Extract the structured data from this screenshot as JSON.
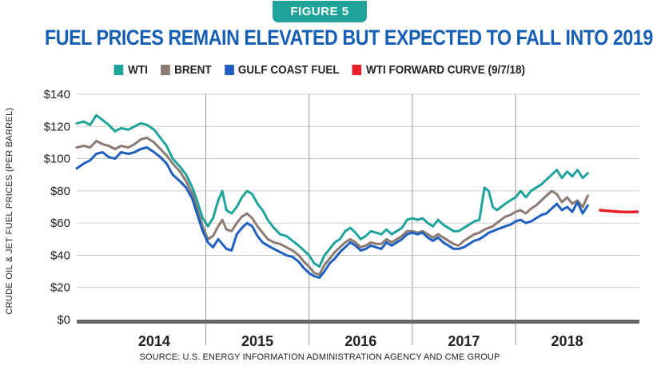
{
  "figure_label": "FIGURE 5",
  "colors": {
    "badge": "#1fa39a",
    "title": "#1560b4",
    "wti": "#1fa39a",
    "brent": "#8b7b72",
    "gulf": "#1f5fbf",
    "forward": "#e8202a",
    "axis": "#666666"
  },
  "chart_data": {
    "type": "line",
    "title": "FUEL PRICES REMAIN ELEVATED BUT EXPECTED TO FALL INTO 2019",
    "ylabel": "CRUDE OIL & JET FUEL PRICES (PER BARREL)",
    "xlabel": "",
    "source": "SOURCE: U.S. ENERGY INFORMATION ADMINISTRATION AGENCY AND CME GROUP",
    "ylim": [
      0,
      140
    ],
    "xlim": [
      2013.75,
      2019.2
    ],
    "y_ticks": [
      "$0",
      "$20",
      "$40",
      "$60",
      "$80",
      "$100",
      "$120",
      "$140"
    ],
    "x_tick_labels": [
      {
        "label": "2014",
        "x": 2014.5
      },
      {
        "label": "2015",
        "x": 2015.5
      },
      {
        "label": "2016",
        "x": 2016.5
      },
      {
        "label": "2017",
        "x": 2017.5
      },
      {
        "label": "2018",
        "x": 2018.5
      }
    ],
    "year_dividers": [
      2015,
      2016,
      2017,
      2018
    ],
    "grid": "horizontal",
    "legend_position": "top",
    "series": [
      {
        "name": "WTI",
        "color_key": "wti",
        "points": [
          [
            2013.75,
            122
          ],
          [
            2013.82,
            123
          ],
          [
            2013.88,
            121
          ],
          [
            2013.94,
            127
          ],
          [
            2014.0,
            124
          ],
          [
            2014.06,
            121
          ],
          [
            2014.12,
            117
          ],
          [
            2014.18,
            119
          ],
          [
            2014.25,
            118
          ],
          [
            2014.31,
            120
          ],
          [
            2014.37,
            122
          ],
          [
            2014.43,
            121
          ],
          [
            2014.5,
            118
          ],
          [
            2014.56,
            113
          ],
          [
            2014.62,
            108
          ],
          [
            2014.68,
            100
          ],
          [
            2014.75,
            95
          ],
          [
            2014.81,
            90
          ],
          [
            2014.87,
            82
          ],
          [
            2014.92,
            73
          ],
          [
            2014.97,
            63
          ],
          [
            2015.02,
            58
          ],
          [
            2015.07,
            63
          ],
          [
            2015.12,
            74
          ],
          [
            2015.16,
            80
          ],
          [
            2015.2,
            68
          ],
          [
            2015.25,
            66
          ],
          [
            2015.3,
            70
          ],
          [
            2015.35,
            76
          ],
          [
            2015.4,
            80
          ],
          [
            2015.45,
            78
          ],
          [
            2015.5,
            72
          ],
          [
            2015.55,
            68
          ],
          [
            2015.6,
            62
          ],
          [
            2015.66,
            57
          ],
          [
            2015.72,
            53
          ],
          [
            2015.78,
            52
          ],
          [
            2015.84,
            49
          ],
          [
            2015.9,
            46
          ],
          [
            2015.95,
            43
          ],
          [
            2016.0,
            40
          ],
          [
            2016.05,
            35
          ],
          [
            2016.1,
            33
          ],
          [
            2016.15,
            40
          ],
          [
            2016.2,
            44
          ],
          [
            2016.25,
            48
          ],
          [
            2016.3,
            50
          ],
          [
            2016.35,
            55
          ],
          [
            2016.4,
            57
          ],
          [
            2016.45,
            54
          ],
          [
            2016.5,
            50
          ],
          [
            2016.55,
            52
          ],
          [
            2016.6,
            55
          ],
          [
            2016.65,
            54
          ],
          [
            2016.7,
            53
          ],
          [
            2016.75,
            56
          ],
          [
            2016.8,
            53
          ],
          [
            2016.85,
            55
          ],
          [
            2016.9,
            57
          ],
          [
            2016.95,
            62
          ],
          [
            2017.0,
            63
          ],
          [
            2017.05,
            62
          ],
          [
            2017.1,
            63
          ],
          [
            2017.15,
            60
          ],
          [
            2017.2,
            58
          ],
          [
            2017.25,
            62
          ],
          [
            2017.3,
            59
          ],
          [
            2017.35,
            57
          ],
          [
            2017.4,
            55
          ],
          [
            2017.45,
            55
          ],
          [
            2017.5,
            57
          ],
          [
            2017.55,
            59
          ],
          [
            2017.6,
            61
          ],
          [
            2017.65,
            62
          ],
          [
            2017.7,
            82
          ],
          [
            2017.74,
            80
          ],
          [
            2017.78,
            70
          ],
          [
            2017.82,
            68
          ],
          [
            2017.86,
            70
          ],
          [
            2017.9,
            72
          ],
          [
            2017.95,
            74
          ],
          [
            2018.0,
            76
          ],
          [
            2018.05,
            80
          ],
          [
            2018.1,
            76
          ],
          [
            2018.15,
            80
          ],
          [
            2018.2,
            82
          ],
          [
            2018.25,
            84
          ],
          [
            2018.3,
            87
          ],
          [
            2018.35,
            90
          ],
          [
            2018.4,
            93
          ],
          [
            2018.45,
            88
          ],
          [
            2018.5,
            92
          ],
          [
            2018.55,
            89
          ],
          [
            2018.6,
            93
          ],
          [
            2018.65,
            88
          ],
          [
            2018.7,
            91
          ]
        ]
      },
      {
        "name": "BRENT",
        "color_key": "brent",
        "points": [
          [
            2013.75,
            107
          ],
          [
            2013.82,
            108
          ],
          [
            2013.88,
            107
          ],
          [
            2013.94,
            111
          ],
          [
            2014.0,
            109
          ],
          [
            2014.06,
            108
          ],
          [
            2014.12,
            106
          ],
          [
            2014.18,
            108
          ],
          [
            2014.25,
            107
          ],
          [
            2014.31,
            109
          ],
          [
            2014.37,
            112
          ],
          [
            2014.43,
            113
          ],
          [
            2014.5,
            110
          ],
          [
            2014.56,
            106
          ],
          [
            2014.62,
            102
          ],
          [
            2014.68,
            97
          ],
          [
            2014.75,
            92
          ],
          [
            2014.81,
            86
          ],
          [
            2014.87,
            78
          ],
          [
            2014.92,
            68
          ],
          [
            2014.97,
            58
          ],
          [
            2015.02,
            50
          ],
          [
            2015.07,
            52
          ],
          [
            2015.12,
            58
          ],
          [
            2015.16,
            62
          ],
          [
            2015.2,
            56
          ],
          [
            2015.25,
            55
          ],
          [
            2015.3,
            60
          ],
          [
            2015.35,
            64
          ],
          [
            2015.4,
            66
          ],
          [
            2015.45,
            63
          ],
          [
            2015.5,
            58
          ],
          [
            2015.55,
            54
          ],
          [
            2015.6,
            50
          ],
          [
            2015.66,
            48
          ],
          [
            2015.72,
            47
          ],
          [
            2015.78,
            45
          ],
          [
            2015.84,
            43
          ],
          [
            2015.9,
            40
          ],
          [
            2015.95,
            36
          ],
          [
            2016.0,
            33
          ],
          [
            2016.05,
            29
          ],
          [
            2016.1,
            28
          ],
          [
            2016.15,
            34
          ],
          [
            2016.2,
            38
          ],
          [
            2016.25,
            42
          ],
          [
            2016.3,
            45
          ],
          [
            2016.35,
            48
          ],
          [
            2016.4,
            50
          ],
          [
            2016.45,
            48
          ],
          [
            2016.5,
            45
          ],
          [
            2016.55,
            46
          ],
          [
            2016.6,
            48
          ],
          [
            2016.65,
            47
          ],
          [
            2016.7,
            47
          ],
          [
            2016.75,
            50
          ],
          [
            2016.8,
            48
          ],
          [
            2016.85,
            50
          ],
          [
            2016.9,
            52
          ],
          [
            2016.95,
            55
          ],
          [
            2017.0,
            55
          ],
          [
            2017.05,
            54
          ],
          [
            2017.1,
            55
          ],
          [
            2017.15,
            53
          ],
          [
            2017.2,
            51
          ],
          [
            2017.25,
            53
          ],
          [
            2017.3,
            51
          ],
          [
            2017.35,
            49
          ],
          [
            2017.4,
            47
          ],
          [
            2017.45,
            46
          ],
          [
            2017.5,
            49
          ],
          [
            2017.55,
            51
          ],
          [
            2017.6,
            53
          ],
          [
            2017.65,
            54
          ],
          [
            2017.7,
            56
          ],
          [
            2017.74,
            57
          ],
          [
            2017.78,
            58
          ],
          [
            2017.82,
            60
          ],
          [
            2017.86,
            62
          ],
          [
            2017.9,
            64
          ],
          [
            2017.95,
            65
          ],
          [
            2018.0,
            67
          ],
          [
            2018.05,
            68
          ],
          [
            2018.1,
            66
          ],
          [
            2018.15,
            69
          ],
          [
            2018.2,
            71
          ],
          [
            2018.25,
            74
          ],
          [
            2018.3,
            77
          ],
          [
            2018.35,
            80
          ],
          [
            2018.4,
            78
          ],
          [
            2018.45,
            73
          ],
          [
            2018.5,
            76
          ],
          [
            2018.55,
            72
          ],
          [
            2018.6,
            74
          ],
          [
            2018.65,
            70
          ],
          [
            2018.7,
            77
          ]
        ]
      },
      {
        "name": "GULF COAST FUEL",
        "color_key": "gulf",
        "points": [
          [
            2013.75,
            94
          ],
          [
            2013.82,
            97
          ],
          [
            2013.88,
            99
          ],
          [
            2013.94,
            103
          ],
          [
            2014.0,
            104
          ],
          [
            2014.06,
            101
          ],
          [
            2014.12,
            100
          ],
          [
            2014.18,
            104
          ],
          [
            2014.25,
            103
          ],
          [
            2014.31,
            104
          ],
          [
            2014.37,
            106
          ],
          [
            2014.43,
            107
          ],
          [
            2014.5,
            104
          ],
          [
            2014.56,
            101
          ],
          [
            2014.62,
            97
          ],
          [
            2014.68,
            90
          ],
          [
            2014.75,
            86
          ],
          [
            2014.81,
            82
          ],
          [
            2014.87,
            75
          ],
          [
            2014.92,
            65
          ],
          [
            2014.97,
            55
          ],
          [
            2015.02,
            48
          ],
          [
            2015.07,
            45
          ],
          [
            2015.12,
            50
          ],
          [
            2015.16,
            47
          ],
          [
            2015.2,
            44
          ],
          [
            2015.25,
            43
          ],
          [
            2015.3,
            53
          ],
          [
            2015.35,
            57
          ],
          [
            2015.4,
            60
          ],
          [
            2015.45,
            58
          ],
          [
            2015.5,
            52
          ],
          [
            2015.55,
            48
          ],
          [
            2015.6,
            46
          ],
          [
            2015.66,
            44
          ],
          [
            2015.72,
            42
          ],
          [
            2015.78,
            40
          ],
          [
            2015.84,
            39
          ],
          [
            2015.9,
            36
          ],
          [
            2015.95,
            32
          ],
          [
            2016.0,
            29
          ],
          [
            2016.05,
            27
          ],
          [
            2016.1,
            26
          ],
          [
            2016.15,
            30
          ],
          [
            2016.2,
            35
          ],
          [
            2016.25,
            38
          ],
          [
            2016.3,
            42
          ],
          [
            2016.35,
            45
          ],
          [
            2016.4,
            48
          ],
          [
            2016.45,
            46
          ],
          [
            2016.5,
            43
          ],
          [
            2016.55,
            44
          ],
          [
            2016.6,
            46
          ],
          [
            2016.65,
            45
          ],
          [
            2016.7,
            44
          ],
          [
            2016.75,
            48
          ],
          [
            2016.8,
            46
          ],
          [
            2016.85,
            48
          ],
          [
            2016.9,
            50
          ],
          [
            2016.95,
            53
          ],
          [
            2017.0,
            54
          ],
          [
            2017.05,
            53
          ],
          [
            2017.1,
            54
          ],
          [
            2017.15,
            51
          ],
          [
            2017.2,
            49
          ],
          [
            2017.25,
            51
          ],
          [
            2017.3,
            48
          ],
          [
            2017.35,
            46
          ],
          [
            2017.4,
            44
          ],
          [
            2017.45,
            44
          ],
          [
            2017.5,
            45
          ],
          [
            2017.55,
            47
          ],
          [
            2017.6,
            49
          ],
          [
            2017.65,
            50
          ],
          [
            2017.7,
            52
          ],
          [
            2017.74,
            54
          ],
          [
            2017.78,
            55
          ],
          [
            2017.82,
            56
          ],
          [
            2017.86,
            57
          ],
          [
            2017.9,
            58
          ],
          [
            2017.95,
            59
          ],
          [
            2018.0,
            61
          ],
          [
            2018.05,
            62
          ],
          [
            2018.1,
            60
          ],
          [
            2018.15,
            61
          ],
          [
            2018.2,
            63
          ],
          [
            2018.25,
            65
          ],
          [
            2018.3,
            66
          ],
          [
            2018.35,
            69
          ],
          [
            2018.4,
            72
          ],
          [
            2018.45,
            68
          ],
          [
            2018.5,
            70
          ],
          [
            2018.55,
            67
          ],
          [
            2018.6,
            73
          ],
          [
            2018.65,
            66
          ],
          [
            2018.7,
            71
          ]
        ]
      },
      {
        "name": "WTI FORWARD CURVE (9/7/18)",
        "color_key": "forward",
        "points": [
          [
            2018.82,
            68
          ],
          [
            2018.88,
            67.6
          ],
          [
            2018.94,
            67.3
          ],
          [
            2019.0,
            67
          ],
          [
            2019.06,
            66.9
          ],
          [
            2019.12,
            66.8
          ],
          [
            2019.18,
            67
          ]
        ]
      }
    ]
  }
}
